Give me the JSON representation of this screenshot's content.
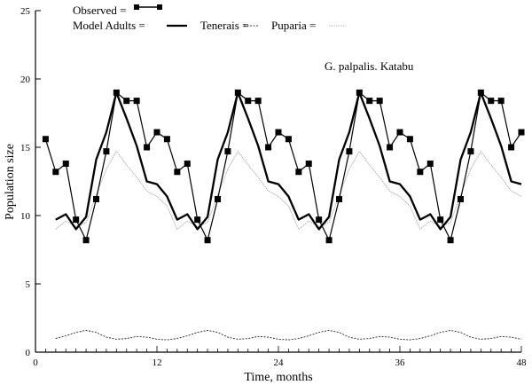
{
  "chart_data": {
    "type": "line",
    "title": "",
    "annotation": "G. palpalis. Katabu",
    "xlabel": "Time, months",
    "ylabel": "Population size",
    "xlim": [
      0,
      48
    ],
    "ylim": [
      0,
      25
    ],
    "xticks": [
      0,
      12,
      24,
      36,
      48
    ],
    "yticks": [
      0,
      5,
      10,
      15,
      20,
      25
    ],
    "grid": false,
    "legend": {
      "placement": "top-left",
      "items": [
        "Observed =",
        "Model Adults =",
        "Tenerais =",
        "Puparia ="
      ]
    },
    "series": [
      {
        "name": "Observed",
        "style": "solid-square-markers",
        "x": [
          1,
          2,
          3,
          4,
          5,
          6,
          7,
          8,
          9,
          10,
          11,
          12,
          13,
          14,
          15,
          16,
          17,
          18,
          19,
          20,
          21,
          22,
          23,
          24,
          25,
          26,
          27,
          28,
          29,
          30,
          31,
          32,
          33,
          34,
          35,
          36,
          37,
          38,
          39,
          40,
          41,
          42,
          43,
          44,
          45,
          46,
          47,
          48
        ],
        "values": [
          15.6,
          13.2,
          13.8,
          9.7,
          8.2,
          11.2,
          14.7,
          19.0,
          18.4,
          18.4,
          15.0,
          16.1,
          15.6,
          13.2,
          13.8,
          9.7,
          8.2,
          11.2,
          14.7,
          19.0,
          18.4,
          18.4,
          15.0,
          16.1,
          15.6,
          13.2,
          13.8,
          9.7,
          8.2,
          11.2,
          14.7,
          19.0,
          18.4,
          18.4,
          15.0,
          16.1,
          15.6,
          13.2,
          13.8,
          9.7,
          8.2,
          11.2,
          14.7,
          19.0,
          18.4,
          18.4,
          15.0,
          16.1
        ]
      },
      {
        "name": "Model Adults",
        "style": "thick-solid",
        "x": [
          2,
          3,
          4,
          5,
          6,
          7,
          8,
          9,
          10,
          11,
          12,
          13,
          14,
          15,
          16,
          17,
          18,
          19,
          20,
          21,
          22,
          23,
          24,
          25,
          26,
          27,
          28,
          29,
          30,
          31,
          32,
          33,
          34,
          35,
          36,
          37,
          38,
          39,
          40,
          41,
          42,
          43,
          44,
          45,
          46,
          47,
          48
        ],
        "values": [
          9.7,
          10.1,
          9.0,
          9.9,
          14.1,
          16.1,
          19.0,
          17.1,
          15.1,
          12.5,
          12.3,
          11.4,
          9.7,
          10.1,
          9.0,
          9.9,
          14.1,
          16.1,
          19.0,
          17.1,
          15.1,
          12.5,
          12.3,
          11.4,
          9.7,
          10.1,
          9.0,
          9.9,
          14.1,
          16.1,
          19.0,
          17.1,
          15.1,
          12.5,
          12.3,
          11.4,
          9.7,
          10.1,
          9.0,
          9.9,
          14.1,
          16.1,
          19.0,
          17.1,
          15.1,
          12.5,
          12.3
        ]
      },
      {
        "name": "Tenerais",
        "style": "dashed",
        "x": [
          2,
          3,
          4,
          5,
          6,
          7,
          8,
          9,
          10,
          11,
          12,
          13,
          14,
          15,
          16,
          17,
          18,
          19,
          20,
          21,
          22,
          23,
          24,
          25,
          26,
          27,
          28,
          29,
          30,
          31,
          32,
          33,
          34,
          35,
          36,
          37,
          38,
          39,
          40,
          41,
          42,
          43,
          44,
          45,
          46,
          47,
          48
        ],
        "values": [
          1.0,
          1.2,
          1.45,
          1.6,
          1.45,
          1.1,
          0.95,
          1.0,
          1.15,
          1.1,
          0.95,
          0.9,
          1.0,
          1.2,
          1.45,
          1.6,
          1.45,
          1.1,
          0.95,
          1.0,
          1.15,
          1.1,
          0.95,
          0.9,
          1.0,
          1.2,
          1.45,
          1.6,
          1.45,
          1.1,
          0.95,
          1.0,
          1.15,
          1.1,
          0.95,
          0.9,
          1.0,
          1.2,
          1.45,
          1.6,
          1.45,
          1.1,
          0.95,
          1.0,
          1.15,
          1.1,
          0.95
        ]
      },
      {
        "name": "Puparia",
        "style": "dotted-grey",
        "x": [
          2,
          3,
          4,
          5,
          6,
          7,
          8,
          9,
          10,
          11,
          12,
          13,
          14,
          15,
          16,
          17,
          18,
          19,
          20,
          21,
          22,
          23,
          24,
          25,
          26,
          27,
          28,
          29,
          30,
          31,
          32,
          33,
          34,
          35,
          36,
          37,
          38,
          39,
          40,
          41,
          42,
          43,
          44,
          45,
          46,
          47,
          48
        ],
        "values": [
          9.0,
          9.6,
          9.2,
          9.5,
          11.5,
          13.4,
          14.7,
          13.7,
          12.8,
          11.8,
          11.4,
          10.7,
          9.0,
          9.6,
          9.2,
          9.5,
          11.5,
          13.4,
          14.7,
          13.7,
          12.8,
          11.8,
          11.4,
          10.7,
          9.0,
          9.6,
          9.2,
          9.5,
          11.5,
          13.4,
          14.7,
          13.7,
          12.8,
          11.8,
          11.4,
          10.7,
          9.0,
          9.6,
          9.2,
          9.5,
          11.5,
          13.4,
          14.7,
          13.7,
          12.8,
          11.8,
          11.4
        ]
      }
    ]
  }
}
